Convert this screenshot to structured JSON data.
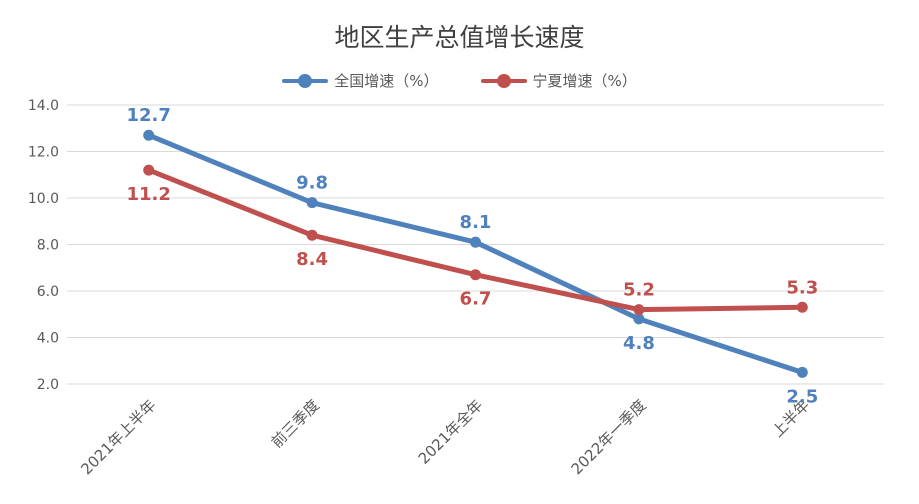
{
  "chart_data": {
    "type": "line",
    "title": "地区生产总值增长速度",
    "categories": [
      "2021年上半年",
      "前三季度",
      "2021年全年",
      "2022年一季度",
      "上半年"
    ],
    "series": [
      {
        "name": "全国增速（%）",
        "color": "#4F81BD",
        "values": [
          12.7,
          9.8,
          8.1,
          4.8,
          2.5
        ]
      },
      {
        "name": "宁夏增速（%）",
        "color": "#C0504D",
        "values": [
          11.2,
          8.4,
          6.7,
          5.2,
          5.3
        ]
      }
    ],
    "y_ticks": [
      "2.0",
      "4.0",
      "6.0",
      "8.0",
      "10.0",
      "12.0",
      "14.0"
    ],
    "ylim": [
      2.0,
      14.0
    ],
    "grid": true,
    "legend": "top-center"
  }
}
